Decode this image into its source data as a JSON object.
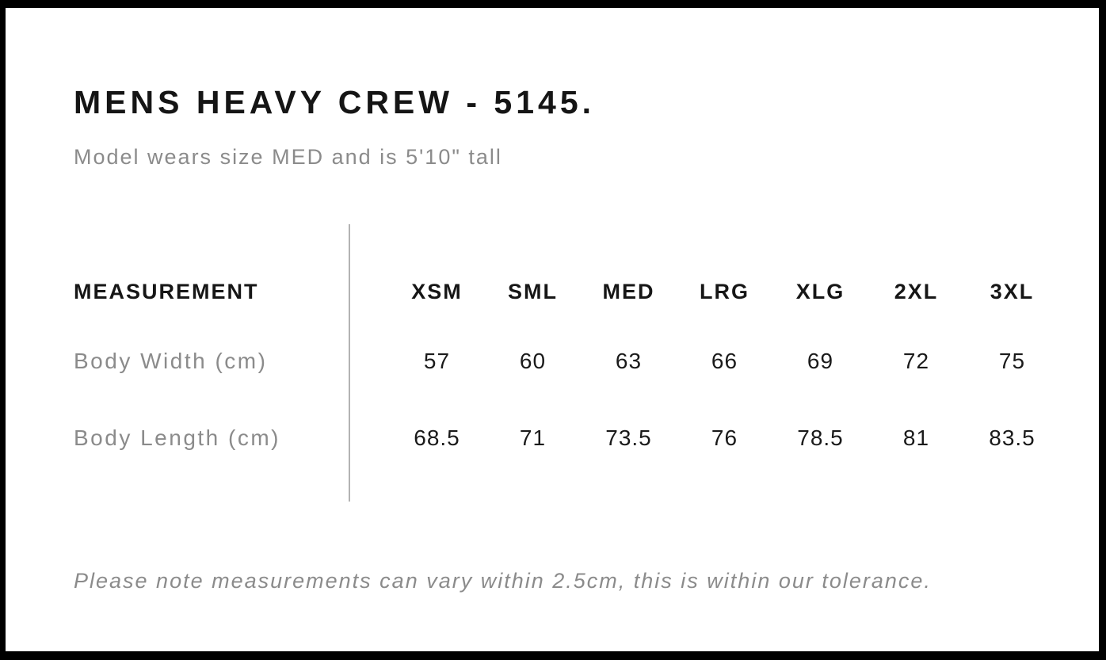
{
  "page": {
    "title": "MENS HEAVY CREW - 5145.",
    "subtitle": "Model wears size MED and is 5'10\" tall",
    "footnote": "Please note measurements can vary within 2.5cm, this is within our tolerance."
  },
  "size_table": {
    "header_label": "MEASUREMENT",
    "size_headers": [
      "XSM",
      "SML",
      "MED",
      "LRG",
      "XLG",
      "2XL",
      "3XL"
    ],
    "rows": [
      {
        "label": "Body Width (cm)",
        "values": [
          "57",
          "60",
          "63",
          "66",
          "69",
          "72",
          "75"
        ]
      },
      {
        "label": "Body Length (cm)",
        "values": [
          "68.5",
          "71",
          "73.5",
          "76",
          "78.5",
          "81",
          "83.5"
        ]
      }
    ]
  },
  "chart_data": {
    "type": "table",
    "title": "MENS HEAVY CREW - 5145.",
    "subtitle": "Model wears size MED and is 5'10\" tall",
    "columns": [
      "MEASUREMENT",
      "XSM",
      "SML",
      "MED",
      "LRG",
      "XLG",
      "2XL",
      "3XL"
    ],
    "rows": [
      [
        "Body Width (cm)",
        57,
        60,
        63,
        66,
        69,
        72,
        75
      ],
      [
        "Body Length (cm)",
        68.5,
        71,
        73.5,
        76,
        78.5,
        81,
        83.5
      ]
    ],
    "notes": "Please note measurements can vary within 2.5cm, this is within our tolerance."
  },
  "colors": {
    "frame": "#000000",
    "background": "#ffffff",
    "text_primary": "#161616",
    "text_secondary": "#8b8b8b",
    "divider": "#b3b3b3"
  }
}
